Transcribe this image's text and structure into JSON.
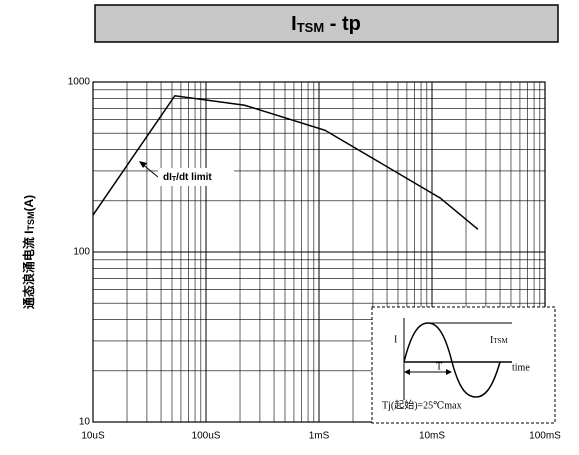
{
  "chart_data": {
    "type": "line",
    "title": {
      "main": "I",
      "sub": "TSM",
      "rest": " - tp"
    },
    "y_label": {
      "main": "通态浪涌电流 I",
      "sub": "TSM",
      "rest": "(A)"
    },
    "annotation": {
      "main": "dI",
      "sub": "T",
      "rest": "/dt limit"
    },
    "inset": {
      "i": "I",
      "itsm": "I",
      "itsm_sub": "TSM",
      "period": "T",
      "time": "time",
      "condition": "Tj(起始)=25℃max"
    },
    "x": [
      1e-05,
      5.3e-05,
      0.00022,
      0.00113,
      0.0118,
      0.0255
    ],
    "series": [
      {
        "name": "ITSM",
        "color": "#000000",
        "values": [
          165,
          830,
          730,
          520,
          208,
          136
        ]
      }
    ],
    "xlim": [
      1e-05,
      0.1
    ],
    "ylim": [
      10,
      1000
    ],
    "xticks": [
      {
        "value": 1e-05,
        "label": "10uS"
      },
      {
        "value": 0.0001,
        "label": "100uS"
      },
      {
        "value": 0.001,
        "label": "1mS"
      },
      {
        "value": 0.01,
        "label": "10mS"
      },
      {
        "value": 0.1,
        "label": "100mS"
      }
    ],
    "yticks": [
      10,
      100,
      1000
    ],
    "xscale": "log",
    "yscale": "log",
    "grid": true,
    "minor_grid": true
  }
}
